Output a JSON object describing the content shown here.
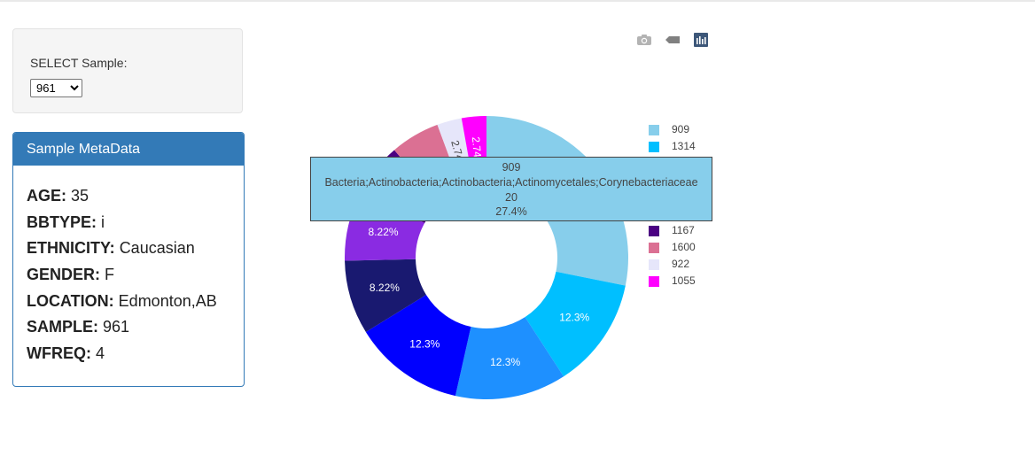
{
  "select": {
    "label": "SELECT Sample:",
    "value": "961"
  },
  "metadata": {
    "title": "Sample MetaData",
    "rows": [
      {
        "key": "AGE:",
        "value": "35"
      },
      {
        "key": "BBTYPE:",
        "value": "i"
      },
      {
        "key": "ETHNICITY:",
        "value": "Caucasian"
      },
      {
        "key": "GENDER:",
        "value": "F"
      },
      {
        "key": "LOCATION:",
        "value": "Edmonton,AB"
      },
      {
        "key": "SAMPLE:",
        "value": "961"
      },
      {
        "key": "WFREQ:",
        "value": "4"
      }
    ]
  },
  "modebar": {
    "icons": [
      "camera-icon",
      "tag-icon",
      "plotly-logo-icon"
    ]
  },
  "tooltip": {
    "line1": "909",
    "line2": "Bacteria;Actinobacteria;Actinobacteria;Actinomycetales;Corynebacteriaceae",
    "line3": "20",
    "line4": "27.4%"
  },
  "chart_data": {
    "type": "pie",
    "hole": 0.5,
    "labels": [
      "909",
      "1314",
      "",
      "",
      "",
      "",
      "1167",
      "1600",
      "922",
      "1055"
    ],
    "values": [
      20,
      9,
      9,
      9,
      6,
      6,
      4,
      4,
      2,
      2
    ],
    "percent_labels": [
      "27.4%",
      "12.3%",
      "12.3%",
      "12.3%",
      "8.22%",
      "8.22%",
      "5.48%",
      "5.48%",
      "2.74%",
      "2.74%"
    ],
    "colors": [
      "#87ceeb",
      "#00bfff",
      "#1e90ff",
      "#0000ff",
      "#191970",
      "#8a2be2",
      "#4b0082",
      "#db7093",
      "#e6e6fa",
      "#ff00ff"
    ],
    "text_colors": [
      "#ffffff",
      "#ffffff",
      "#ffffff",
      "#ffffff",
      "#ffffff",
      "#ffffff",
      "#ffffff",
      "#444444",
      "#444444",
      "#ffffff"
    ],
    "legend": [
      {
        "label": "909",
        "color": "#87ceeb"
      },
      {
        "label": "1314",
        "color": "#00bfff"
      },
      {
        "label": "1167",
        "color": "#4b0082"
      },
      {
        "label": "1600",
        "color": "#db7093"
      },
      {
        "label": "922",
        "color": "#e6e6fa"
      },
      {
        "label": "1055",
        "color": "#ff00ff"
      }
    ]
  }
}
